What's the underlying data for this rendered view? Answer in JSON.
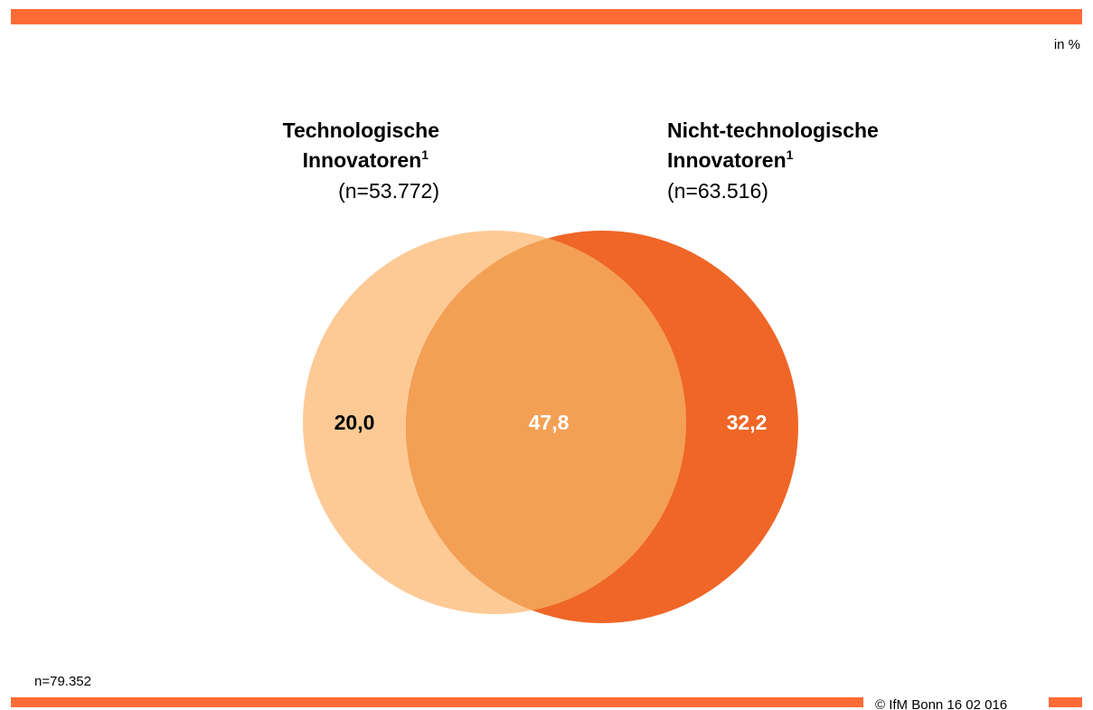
{
  "chart_data": {
    "type": "venn",
    "unit_note": "in %",
    "sets": [
      {
        "name_lines": [
          "Technologische",
          "Innovatoren"
        ],
        "footnote": "1",
        "n_label": "(n=53.772)",
        "color": "#fdca96"
      },
      {
        "name_lines": [
          "Nicht-technologische",
          "Innovatoren"
        ],
        "footnote": "1",
        "n_label": "(n=63.516)",
        "color": "#ef6627"
      }
    ],
    "overlap_color": "#f3a055",
    "values": [
      20.0,
      47.8,
      32.2
    ],
    "value_labels": [
      "20,0",
      "47,8",
      "32,2"
    ],
    "label_colors": [
      "#000000",
      "#ffffff",
      "#ffffff"
    ],
    "total_note": "n=79.352",
    "copyright": "© IfM Bonn 16 02 016"
  }
}
